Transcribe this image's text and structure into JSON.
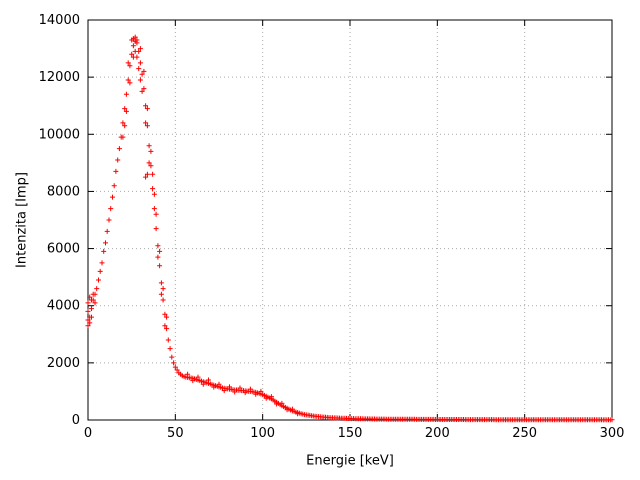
{
  "chart_data": {
    "type": "scatter",
    "title": "",
    "xlabel": "Energie [keV]",
    "ylabel": "Intenzita [Imp]",
    "xlim": [
      0,
      300
    ],
    "ylim": [
      0,
      14000
    ],
    "xticks": [
      0,
      50,
      100,
      150,
      200,
      250,
      300
    ],
    "yticks": [
      0,
      2000,
      4000,
      6000,
      8000,
      10000,
      12000,
      14000
    ],
    "grid": true,
    "legend": "none",
    "marker": "plus",
    "marker_color": "#ff0000",
    "border_color": "#000000",
    "grid_color": "#aaaaaa",
    "points": [
      [
        0,
        3300
      ],
      [
        1,
        3600
      ],
      [
        2,
        3900
      ],
      [
        3,
        4200
      ],
      [
        4,
        4400
      ],
      [
        5,
        4600
      ],
      [
        6,
        4900
      ],
      [
        7,
        5200
      ],
      [
        8,
        5500
      ],
      [
        9,
        5900
      ],
      [
        10,
        6200
      ],
      [
        11,
        6600
      ],
      [
        12,
        7000
      ],
      [
        13,
        7400
      ],
      [
        14,
        7800
      ],
      [
        15,
        8200
      ],
      [
        16,
        8700
      ],
      [
        17,
        9100
      ],
      [
        18,
        9500
      ],
      [
        19,
        9900
      ],
      [
        20,
        10400
      ],
      [
        21,
        10900
      ],
      [
        22,
        11400
      ],
      [
        23,
        11900
      ],
      [
        24,
        12400
      ],
      [
        25,
        12800
      ],
      [
        26,
        13100
      ],
      [
        27,
        13400
      ],
      [
        28,
        13200
      ],
      [
        29,
        12900
      ],
      [
        30,
        12500
      ],
      [
        31,
        12100
      ],
      [
        32,
        11600
      ],
      [
        33,
        11000
      ],
      [
        34,
        10300
      ],
      [
        35,
        9600
      ],
      [
        36,
        8900
      ],
      [
        37,
        8100
      ],
      [
        38,
        7400
      ],
      [
        39,
        6700
      ],
      [
        40,
        6100
      ],
      [
        41,
        5400
      ],
      [
        42,
        4800
      ],
      [
        43,
        4200
      ],
      [
        44,
        3700
      ],
      [
        45,
        3200
      ],
      [
        46,
        2800
      ],
      [
        47,
        2500
      ],
      [
        48,
        2200
      ],
      [
        49,
        2000
      ],
      [
        50,
        1850
      ],
      [
        51,
        1750
      ],
      [
        52,
        1650
      ],
      [
        53,
        1600
      ],
      [
        54,
        1550
      ],
      [
        55,
        1520
      ],
      [
        56,
        1500
      ],
      [
        57,
        1490
      ],
      [
        58,
        1480
      ],
      [
        59,
        1470
      ],
      [
        60,
        1460
      ],
      [
        61,
        1440
      ],
      [
        62,
        1420
      ],
      [
        63,
        1400
      ],
      [
        64,
        1380
      ],
      [
        65,
        1360
      ],
      [
        66,
        1340
      ],
      [
        67,
        1320
      ],
      [
        68,
        1300
      ],
      [
        69,
        1280
      ],
      [
        70,
        1260
      ],
      [
        71,
        1240
      ],
      [
        72,
        1220
      ],
      [
        73,
        1200
      ],
      [
        74,
        1180
      ],
      [
        75,
        1160
      ],
      [
        76,
        1140
      ],
      [
        77,
        1120
      ],
      [
        78,
        1110
      ],
      [
        79,
        1100
      ],
      [
        80,
        1090
      ],
      [
        81,
        1080
      ],
      [
        82,
        1070
      ],
      [
        83,
        1060
      ],
      [
        84,
        1050
      ],
      [
        85,
        1050
      ],
      [
        86,
        1040
      ],
      [
        87,
        1040
      ],
      [
        88,
        1030
      ],
      [
        89,
        1030
      ],
      [
        90,
        1020
      ],
      [
        91,
        1010
      ],
      [
        92,
        1000
      ],
      [
        93,
        1000
      ],
      [
        94,
        990
      ],
      [
        95,
        980
      ],
      [
        96,
        970
      ],
      [
        97,
        950
      ],
      [
        98,
        930
      ],
      [
        99,
        910
      ],
      [
        100,
        890
      ],
      [
        101,
        860
      ],
      [
        102,
        830
      ],
      [
        103,
        800
      ],
      [
        104,
        770
      ],
      [
        105,
        740
      ],
      [
        106,
        700
      ],
      [
        107,
        660
      ],
      [
        108,
        620
      ],
      [
        109,
        580
      ],
      [
        110,
        540
      ],
      [
        111,
        500
      ],
      [
        112,
        470
      ],
      [
        113,
        440
      ],
      [
        114,
        410
      ],
      [
        115,
        380
      ],
      [
        116,
        350
      ],
      [
        117,
        320
      ],
      [
        118,
        300
      ],
      [
        119,
        280
      ],
      [
        120,
        260
      ],
      [
        121,
        240
      ],
      [
        122,
        220
      ],
      [
        123,
        205
      ],
      [
        124,
        190
      ],
      [
        125,
        180
      ],
      [
        126,
        170
      ],
      [
        127,
        160
      ],
      [
        128,
        150
      ],
      [
        129,
        140
      ],
      [
        130,
        130
      ],
      [
        131,
        125
      ],
      [
        132,
        120
      ],
      [
        133,
        112
      ],
      [
        134,
        105
      ],
      [
        135,
        100
      ],
      [
        136,
        95
      ],
      [
        137,
        90
      ],
      [
        138,
        85
      ],
      [
        139,
        80
      ],
      [
        140,
        78
      ],
      [
        141,
        75
      ],
      [
        142,
        72
      ],
      [
        143,
        70
      ],
      [
        144,
        67
      ],
      [
        145,
        64
      ],
      [
        146,
        61
      ],
      [
        147,
        58
      ],
      [
        148,
        56
      ],
      [
        149,
        54
      ],
      [
        150,
        52
      ],
      [
        152,
        48
      ],
      [
        154,
        45
      ],
      [
        156,
        42
      ],
      [
        158,
        40
      ],
      [
        160,
        38
      ],
      [
        162,
        36
      ],
      [
        164,
        34
      ],
      [
        166,
        32
      ],
      [
        168,
        31
      ],
      [
        170,
        30
      ],
      [
        172,
        29
      ],
      [
        174,
        28
      ],
      [
        176,
        27
      ],
      [
        178,
        26
      ],
      [
        180,
        25
      ],
      [
        182,
        24
      ],
      [
        184,
        24
      ],
      [
        186,
        23
      ],
      [
        188,
        22
      ],
      [
        190,
        22
      ],
      [
        192,
        21
      ],
      [
        194,
        21
      ],
      [
        196,
        20
      ],
      [
        198,
        20
      ],
      [
        200,
        19
      ],
      [
        202,
        19
      ],
      [
        204,
        18
      ],
      [
        206,
        18
      ],
      [
        208,
        17
      ],
      [
        210,
        17
      ],
      [
        212,
        16
      ],
      [
        214,
        16
      ],
      [
        216,
        15
      ],
      [
        218,
        15
      ],
      [
        220,
        15
      ],
      [
        222,
        14
      ],
      [
        224,
        14
      ],
      [
        226,
        14
      ],
      [
        228,
        13
      ],
      [
        230,
        13
      ],
      [
        232,
        13
      ],
      [
        234,
        12
      ],
      [
        236,
        12
      ],
      [
        238,
        12
      ],
      [
        240,
        11
      ],
      [
        242,
        11
      ],
      [
        244,
        11
      ],
      [
        246,
        11
      ],
      [
        248,
        10
      ],
      [
        250,
        10
      ],
      [
        252,
        10
      ],
      [
        254,
        10
      ],
      [
        256,
        9
      ],
      [
        258,
        9
      ],
      [
        260,
        9
      ],
      [
        262,
        9
      ],
      [
        264,
        9
      ],
      [
        266,
        8
      ],
      [
        268,
        8
      ],
      [
        270,
        8
      ],
      [
        272,
        8
      ],
      [
        274,
        8
      ],
      [
        276,
        8
      ],
      [
        278,
        7
      ],
      [
        280,
        7
      ],
      [
        282,
        7
      ],
      [
        284,
        7
      ],
      [
        286,
        7
      ],
      [
        288,
        7
      ],
      [
        290,
        7
      ],
      [
        292,
        6
      ],
      [
        294,
        6
      ],
      [
        296,
        6
      ],
      [
        298,
        6
      ],
      [
        300,
        6
      ],
      [
        151,
        50
      ],
      [
        153,
        47
      ],
      [
        155,
        44
      ],
      [
        157,
        41
      ],
      [
        159,
        39
      ],
      [
        161,
        37
      ],
      [
        163,
        35
      ],
      [
        165,
        33
      ],
      [
        167,
        31
      ],
      [
        169,
        30
      ],
      [
        171,
        29
      ],
      [
        173,
        28
      ],
      [
        175,
        27
      ],
      [
        177,
        26
      ],
      [
        179,
        25
      ],
      [
        181,
        25
      ],
      [
        183,
        24
      ],
      [
        185,
        23
      ],
      [
        187,
        23
      ],
      [
        189,
        22
      ],
      [
        191,
        21
      ],
      [
        193,
        21
      ],
      [
        195,
        20
      ],
      [
        197,
        20
      ],
      [
        199,
        19
      ],
      [
        201,
        19
      ],
      [
        203,
        18
      ],
      [
        205,
        18
      ],
      [
        207,
        17
      ],
      [
        209,
        17
      ],
      [
        211,
        16
      ],
      [
        213,
        16
      ],
      [
        215,
        16
      ],
      [
        217,
        15
      ],
      [
        219,
        15
      ],
      [
        221,
        14
      ],
      [
        223,
        14
      ],
      [
        225,
        14
      ],
      [
        227,
        13
      ],
      [
        229,
        13
      ],
      [
        231,
        13
      ],
      [
        233,
        12
      ],
      [
        235,
        12
      ],
      [
        237,
        12
      ],
      [
        239,
        11
      ],
      [
        241,
        11
      ],
      [
        243,
        11
      ],
      [
        245,
        10
      ],
      [
        247,
        10
      ],
      [
        249,
        10
      ],
      [
        251,
        10
      ],
      [
        253,
        9
      ],
      [
        255,
        9
      ],
      [
        257,
        9
      ],
      [
        259,
        9
      ],
      [
        261,
        8
      ],
      [
        263,
        8
      ],
      [
        265,
        8
      ],
      [
        267,
        8
      ],
      [
        269,
        8
      ],
      [
        271,
        7
      ],
      [
        273,
        7
      ],
      [
        275,
        7
      ],
      [
        277,
        7
      ],
      [
        279,
        7
      ],
      [
        281,
        7
      ],
      [
        283,
        6
      ],
      [
        285,
        6
      ],
      [
        287,
        6
      ],
      [
        289,
        6
      ],
      [
        291,
        6
      ],
      [
        293,
        6
      ],
      [
        295,
        5
      ],
      [
        297,
        5
      ],
      [
        299,
        5
      ],
      [
        0,
        3500
      ],
      [
        0,
        3800
      ],
      [
        0,
        4100
      ],
      [
        1,
        3400
      ],
      [
        1,
        4300
      ],
      [
        2,
        3600
      ],
      [
        2,
        4200
      ],
      [
        3,
        4400
      ],
      [
        4,
        4100
      ],
      [
        20,
        9900
      ],
      [
        21,
        10300
      ],
      [
        22,
        10800
      ],
      [
        23,
        12500
      ],
      [
        24,
        11800
      ],
      [
        25,
        13300
      ],
      [
        26,
        12700
      ],
      [
        26,
        13350
      ],
      [
        27,
        12900
      ],
      [
        27,
        13250
      ],
      [
        28,
        12700
      ],
      [
        28,
        13300
      ],
      [
        29,
        12300
      ],
      [
        30,
        13000
      ],
      [
        30,
        11900
      ],
      [
        31,
        11500
      ],
      [
        32,
        12200
      ],
      [
        33,
        10400
      ],
      [
        33,
        8500
      ],
      [
        34,
        10900
      ],
      [
        34,
        8600
      ],
      [
        35,
        9000
      ],
      [
        36,
        9400
      ],
      [
        37,
        8600
      ],
      [
        38,
        7900
      ],
      [
        39,
        7200
      ],
      [
        40,
        5700
      ],
      [
        41,
        5900
      ],
      [
        42,
        4400
      ],
      [
        43,
        4600
      ],
      [
        44,
        3300
      ],
      [
        45,
        3600
      ],
      [
        57,
        1600
      ],
      [
        60,
        1380
      ],
      [
        63,
        1500
      ],
      [
        66,
        1250
      ],
      [
        69,
        1400
      ],
      [
        72,
        1150
      ],
      [
        75,
        1250
      ],
      [
        78,
        1030
      ],
      [
        81,
        1160
      ],
      [
        84,
        980
      ],
      [
        87,
        1120
      ],
      [
        90,
        960
      ],
      [
        93,
        1080
      ],
      [
        96,
        900
      ],
      [
        99,
        1000
      ],
      [
        102,
        760
      ],
      [
        105,
        820
      ],
      [
        108,
        560
      ],
      [
        111,
        580
      ],
      [
        114,
        360
      ],
      [
        117,
        380
      ],
      [
        120,
        220
      ]
    ]
  }
}
